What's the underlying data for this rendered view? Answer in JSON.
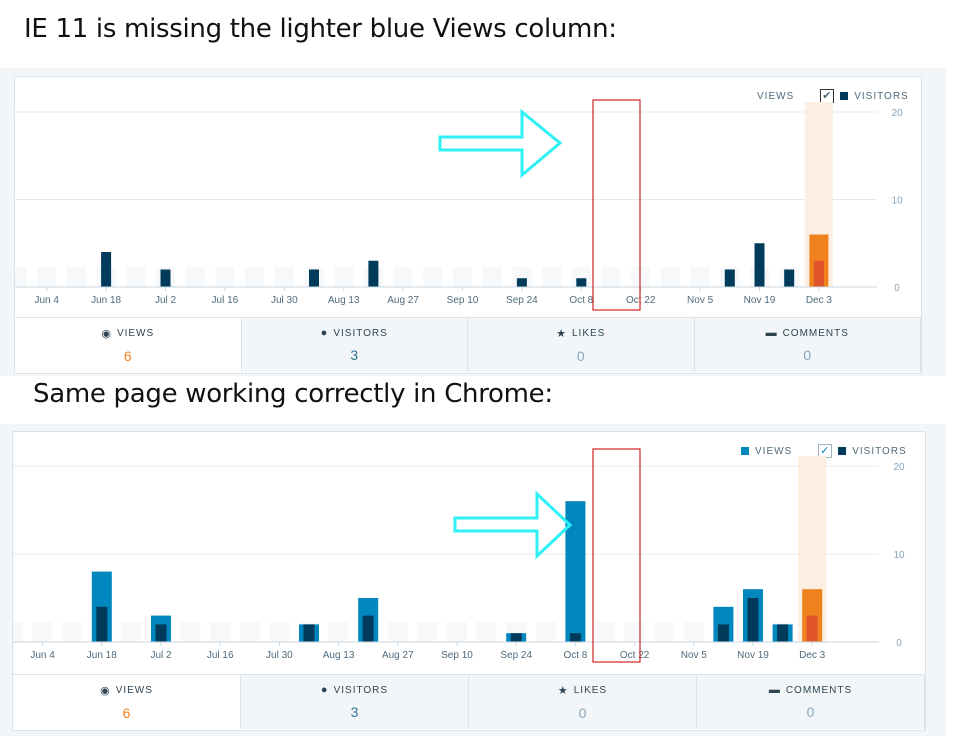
{
  "captions": {
    "top": "IE 11 is missing the lighter blue Views column:",
    "middle": "Same page working correctly in Chrome:"
  },
  "legend": {
    "views": "VIEWS",
    "visitors": "VISITORS"
  },
  "colors": {
    "views": "#0087be",
    "visitors": "#003b5c",
    "highlight_views": "#f0821e",
    "highlight_visitors": "#e0542c",
    "highlight_band": "#fdeee2",
    "ghost": "#f6f8fa",
    "annotation_box": "#d22222",
    "arrow": "#2ff0f5"
  },
  "chart_data": [
    {
      "type": "bar",
      "title": "IE 11",
      "categories": [
        "",
        "Jun 4",
        "",
        "Jun 18",
        "",
        "Jul 2",
        "",
        "Jul 16",
        "",
        "Jul 30",
        "",
        "Aug 13",
        "",
        "Aug 27",
        "",
        "Sep 10",
        "",
        "Sep 24",
        "",
        "Oct 8",
        "",
        "Oct 22",
        "",
        "Nov 5",
        "",
        "Nov 19",
        "",
        "Dec 3"
      ],
      "series": [
        {
          "name": "VIEWS",
          "values": [
            0,
            0,
            0,
            0,
            0,
            0,
            0,
            0,
            0,
            0,
            0,
            0,
            0,
            0,
            0,
            0,
            0,
            0,
            0,
            0,
            0,
            0,
            0,
            0,
            0,
            0,
            0,
            6
          ]
        },
        {
          "name": "VISITORS",
          "values": [
            0,
            0,
            0,
            4,
            0,
            2,
            0,
            0,
            0,
            0,
            2,
            0,
            3,
            0,
            0,
            0,
            0,
            1,
            0,
            1,
            0,
            0,
            0,
            0,
            2,
            5,
            2,
            3
          ]
        }
      ],
      "y_ticks": [
        0,
        10,
        20
      ],
      "ylim": [
        0,
        20
      ],
      "highlight_index": 27,
      "views_enabled": false
    },
    {
      "type": "bar",
      "title": "Chrome",
      "categories": [
        "",
        "Jun 4",
        "",
        "Jun 18",
        "",
        "Jul 2",
        "",
        "Jul 16",
        "",
        "Jul 30",
        "",
        "Aug 13",
        "",
        "Aug 27",
        "",
        "Sep 10",
        "",
        "Sep 24",
        "",
        "Oct 8",
        "",
        "Oct 22",
        "",
        "Nov 5",
        "",
        "Nov 19",
        "",
        "Dec 3"
      ],
      "series": [
        {
          "name": "VIEWS",
          "values": [
            0,
            0,
            0,
            8,
            0,
            3,
            0,
            0,
            0,
            0,
            2,
            0,
            5,
            0,
            0,
            0,
            0,
            1,
            0,
            16,
            0,
            0,
            0,
            0,
            4,
            6,
            2,
            6
          ]
        },
        {
          "name": "VISITORS",
          "values": [
            0,
            0,
            0,
            4,
            0,
            2,
            0,
            0,
            0,
            0,
            2,
            0,
            3,
            0,
            0,
            0,
            0,
            1,
            0,
            1,
            0,
            0,
            0,
            0,
            2,
            5,
            2,
            3
          ]
        }
      ],
      "y_ticks": [
        0,
        10,
        20
      ],
      "ylim": [
        0,
        20
      ],
      "highlight_index": 27,
      "views_enabled": true
    }
  ],
  "tabs_ie": [
    {
      "label": "VIEWS",
      "value": "6",
      "icon": "eye-icon"
    },
    {
      "label": "VISITORS",
      "value": "3",
      "icon": "person-icon"
    },
    {
      "label": "LIKES",
      "value": "0",
      "icon": "star-icon"
    },
    {
      "label": "COMMENTS",
      "value": "0",
      "icon": "comment-icon"
    }
  ],
  "tabs_chrome": [
    {
      "label": "VIEWS",
      "value": "6",
      "icon": "eye-icon"
    },
    {
      "label": "VISITORS",
      "value": "3",
      "icon": "person-icon"
    },
    {
      "label": "LIKES",
      "value": "0",
      "icon": "star-icon"
    },
    {
      "label": "COMMENTS",
      "value": "0",
      "icon": "comment-icon"
    }
  ]
}
